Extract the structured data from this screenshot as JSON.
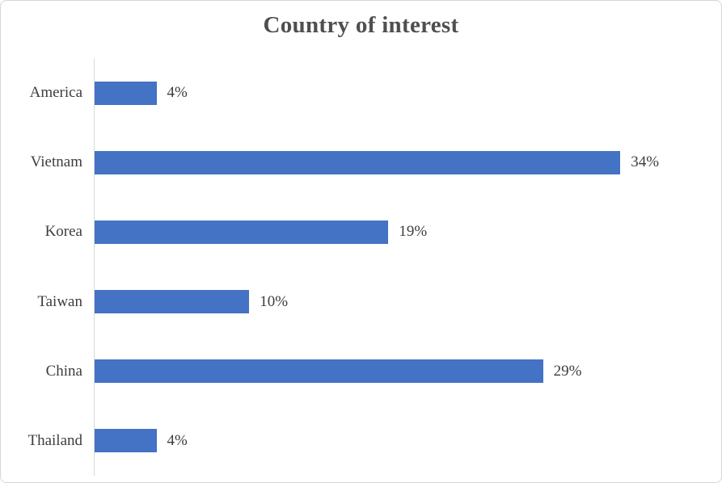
{
  "window": {
    "background": "#ffffff",
    "border_color": "#d6d6d6"
  },
  "chart_data": {
    "type": "bar",
    "orientation": "horizontal",
    "title": "Country of interest",
    "categories": [
      "America",
      "Vietnam",
      "Korea",
      "Taiwan",
      "China",
      "Thailand"
    ],
    "values": [
      4,
      34,
      19,
      10,
      29,
      4
    ],
    "value_labels": [
      "4%",
      "34%",
      "19%",
      "10%",
      "29%",
      "4%"
    ],
    "xlabel": "",
    "ylabel": "",
    "xlim": [
      0,
      40
    ],
    "grid": false,
    "legend": "none",
    "data_labels": "outside-end",
    "bar_color": "#4472C4",
    "axis_line_color": "#d9d9d9",
    "title_color": "#4f4f4f",
    "label_color": "#3d3d3d"
  }
}
